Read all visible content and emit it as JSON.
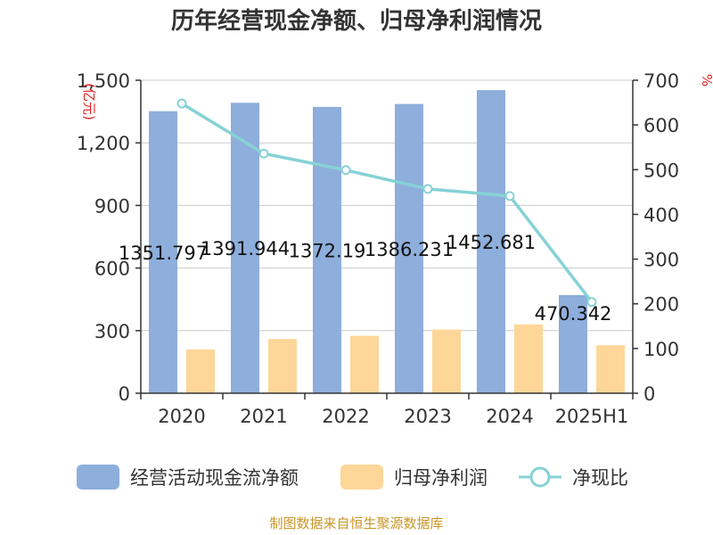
{
  "chart_data": {
    "type": "bar",
    "title": "历年经营现金净额、归母净利润情况",
    "categories": [
      "2020",
      "2021",
      "2022",
      "2023",
      "2024",
      "2025H1"
    ],
    "series": [
      {
        "name": "经营活动现金流净额",
        "type": "bar",
        "axis": "left",
        "color": "#8eaedb",
        "values": [
          1351.797,
          1391.944,
          1372.19,
          1386.231,
          1452.681,
          470.342
        ]
      },
      {
        "name": "归母净利润",
        "type": "bar",
        "axis": "left",
        "color": "#fdd698",
        "values": [
          210,
          260,
          275,
          305,
          330,
          230
        ]
      },
      {
        "name": "净现比",
        "type": "line",
        "axis": "right",
        "color": "#86d2d6",
        "values": [
          648,
          536,
          499,
          457,
          441,
          204
        ]
      }
    ],
    "data_labels": [
      "1351.797",
      "1391.944",
      "1372.19",
      "1386.231",
      "1452.681",
      "470.342"
    ],
    "y_left": {
      "label": "(亿元)",
      "ylim": [
        0,
        1500
      ],
      "ticks": [
        0,
        300,
        600,
        900,
        1200,
        1500
      ],
      "tick_labels": [
        "0",
        "300",
        "600",
        "900",
        "1,200",
        "1,500"
      ]
    },
    "y_right": {
      "label": "%",
      "ylim": [
        0,
        700
      ],
      "ticks": [
        0,
        100,
        200,
        300,
        400,
        500,
        600,
        700
      ],
      "tick_labels": [
        "0",
        "100",
        "200",
        "300",
        "400",
        "500",
        "600",
        "700"
      ]
    },
    "grid": true,
    "legend": "bottom",
    "source": "制图数据来自恒生聚源数据库"
  }
}
